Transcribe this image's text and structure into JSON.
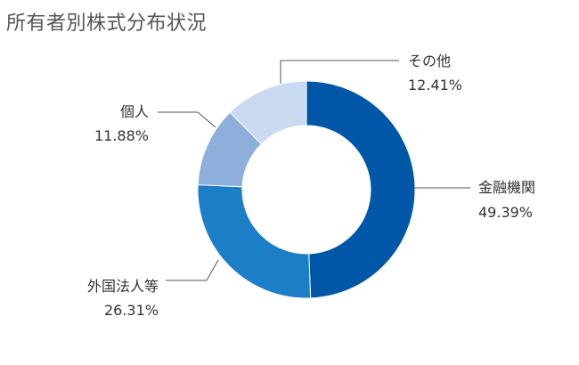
{
  "chart_data": {
    "type": "pie",
    "variant": "donut",
    "title": "所有者別株式分布状況",
    "slices": [
      {
        "label": "金融機関",
        "value": 49.39,
        "value_label": "49.39%",
        "color": "#0057a8"
      },
      {
        "label": "外国法人等",
        "value": 26.31,
        "value_label": "26.31%",
        "color": "#1b7ec6"
      },
      {
        "label": "個人",
        "value": 11.88,
        "value_label": "11.88%",
        "color": "#8eaedc"
      },
      {
        "label": "その他",
        "value": 12.41,
        "value_label": "12.41%",
        "color": "#c9daf1"
      }
    ],
    "start": "12 o'clock",
    "direction": "clockwise",
    "legend": "none (labels beside slices with leader lines)"
  }
}
